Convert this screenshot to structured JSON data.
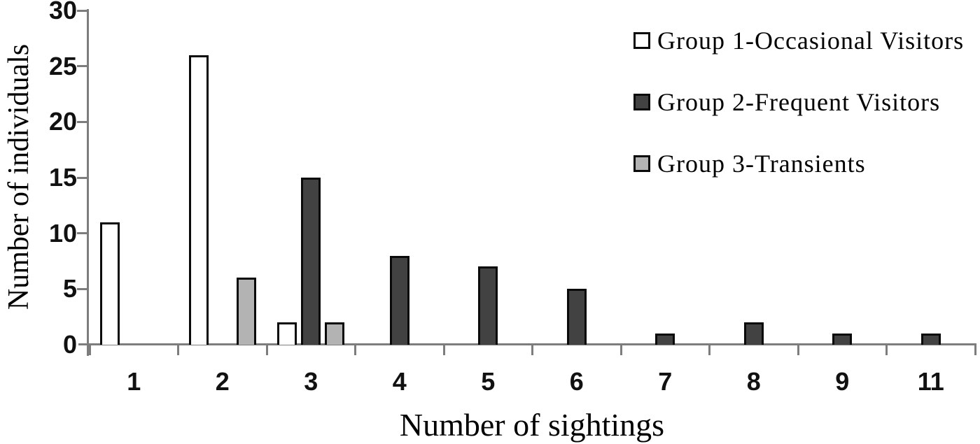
{
  "chart_data": {
    "type": "bar",
    "categories": [
      "1",
      "2",
      "3",
      "4",
      "5",
      "6",
      "7",
      "8",
      "9",
      "11"
    ],
    "series": [
      {
        "name": "Group 1-Occasional Visitors",
        "color": "#ffffff",
        "values": [
          11,
          26,
          2,
          0,
          0,
          0,
          0,
          0,
          0,
          0
        ]
      },
      {
        "name": "Group 2-Frequent Visitors",
        "color": "#424242",
        "values": [
          0,
          0,
          15,
          8,
          7,
          5,
          1,
          2,
          1,
          1
        ]
      },
      {
        "name": "Group 3-Transients",
        "color": "#b3b3b3",
        "values": [
          0,
          6,
          2,
          0,
          0,
          0,
          0,
          0,
          0,
          0
        ]
      }
    ],
    "xlabel": "Number of sightings",
    "ylabel": "Number of individuals",
    "ylim": [
      0,
      30
    ],
    "yticks": [
      0,
      5,
      10,
      15,
      20,
      25,
      30
    ],
    "legend_position": "top-right",
    "grid": false,
    "axis_color": "#7d7d7d",
    "bar_border_color": "#0a0a0a"
  }
}
